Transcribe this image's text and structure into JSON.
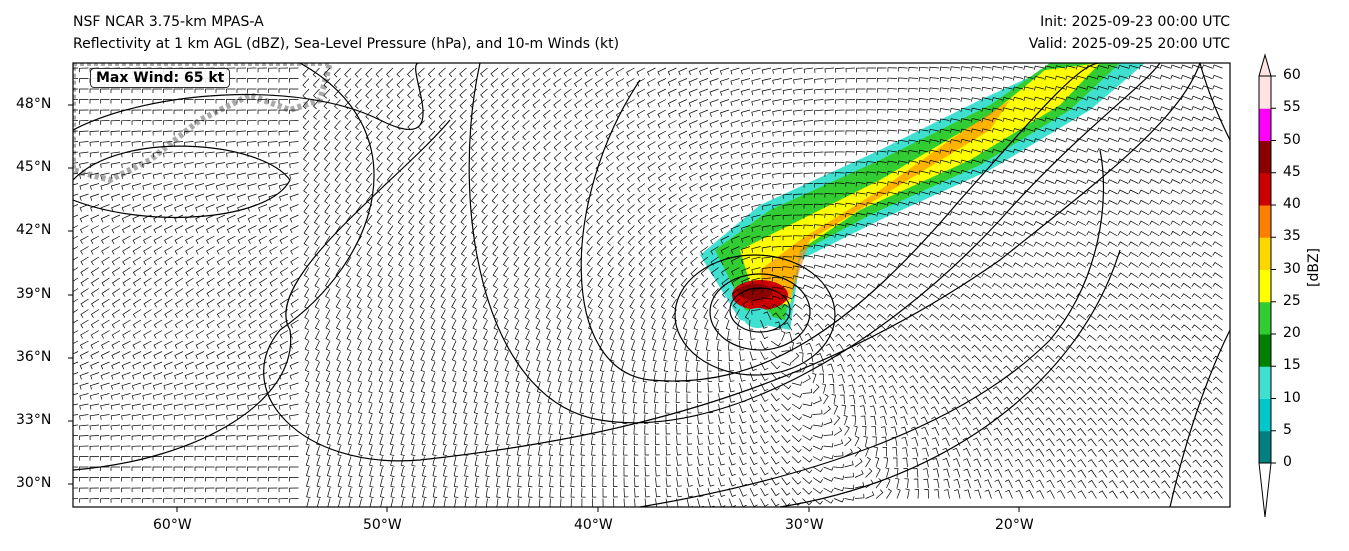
{
  "header": {
    "title_line1": "NSF NCAR 3.75-km MPAS-A",
    "title_line2": "Reflectivity at 1 km AGL (dBZ), Sea-Level Pressure (hPa), and 10-m Winds (kt)",
    "init": "Init: 2025-09-23 00:00 UTC",
    "valid": "Valid: 2025-09-25 20:00 UTC"
  },
  "max_wind_label": "Max Wind: 65 kt",
  "axes": {
    "lat_ticks": [
      "48°N",
      "45°N",
      "42°N",
      "39°N",
      "36°N",
      "33°N",
      "30°N"
    ],
    "lon_ticks": [
      "60°W",
      "50°W",
      "40°W",
      "30°W",
      "20°W"
    ]
  },
  "colorbar": {
    "label": "[dBZ]",
    "ticks": [
      "0",
      "5",
      "10",
      "15",
      "20",
      "25",
      "30",
      "35",
      "40",
      "45",
      "50",
      "55",
      "60"
    ],
    "colors": [
      "#008080",
      "#00c8c8",
      "#40e0d0",
      "#008000",
      "#32cd32",
      "#ffff00",
      "#ffd700",
      "#ff8000",
      "#cc0000",
      "#8b0000",
      "#ff00ff",
      "#ffe4e1"
    ]
  }
}
